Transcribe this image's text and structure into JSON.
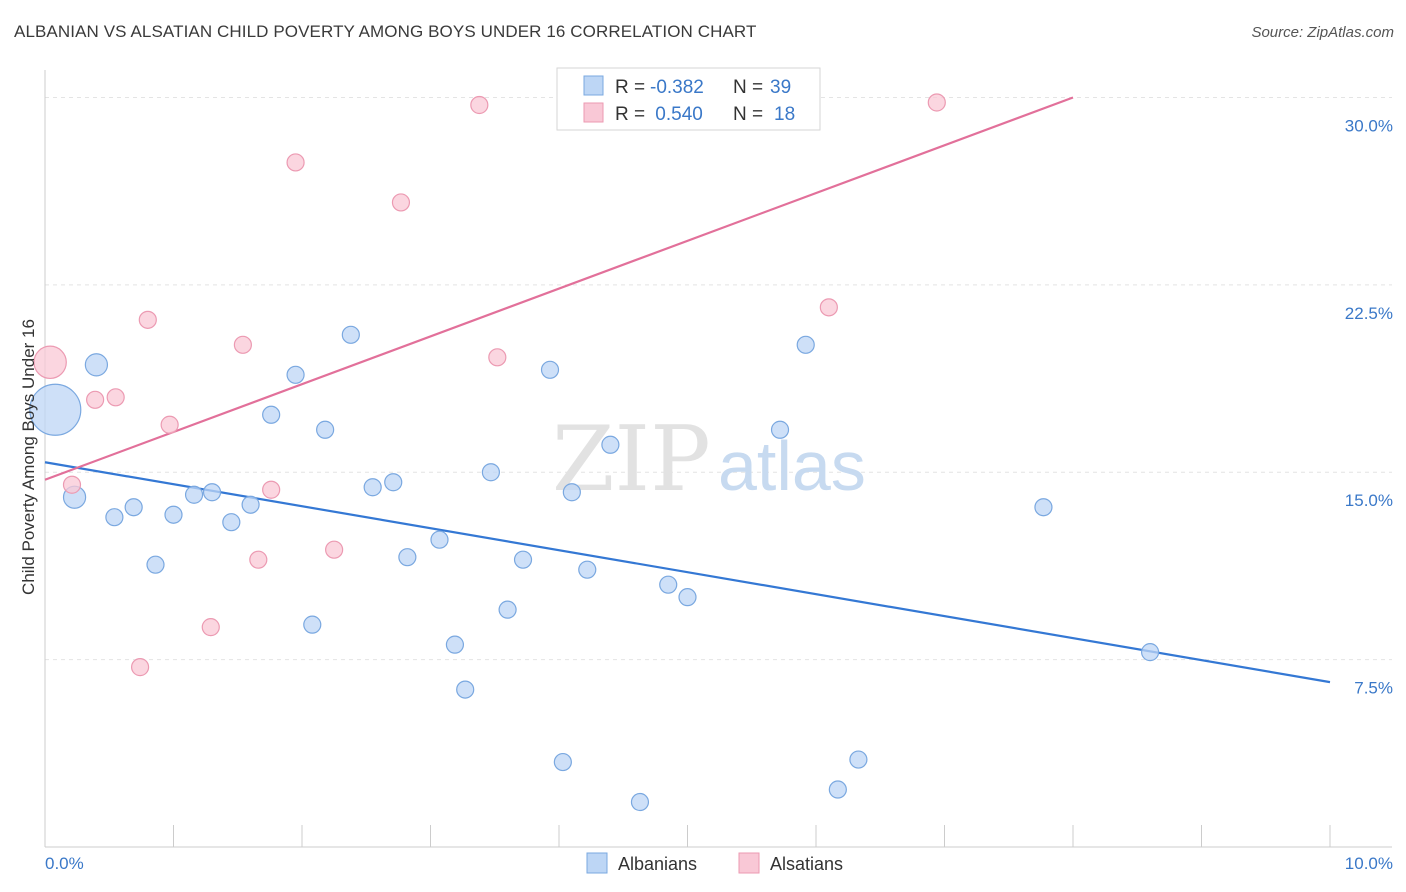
{
  "title": "ALBANIAN VS ALSATIAN CHILD POVERTY AMONG BOYS UNDER 16 CORRELATION CHART",
  "source": "Source: ZipAtlas.com",
  "watermark": {
    "zip": "ZIP",
    "atlas": "atlas"
  },
  "colors": {
    "albanians_fill": "#bdd6f5",
    "albanians_stroke": "#7aa8e0",
    "albanians_line": "#3478d4",
    "alsatians_fill": "#f9c8d6",
    "alsatians_stroke": "#ec9ab2",
    "alsatians_line": "#e2709a",
    "tick_label": "#3a78c8"
  },
  "legend": {
    "rows": [
      {
        "r_label": "R =",
        "r_value": "-0.382",
        "n_label": "N =",
        "n_value": "39"
      },
      {
        "r_label": "R =",
        "r_value": " 0.540",
        "n_label": "N =",
        "n_value": "18"
      }
    ]
  },
  "chart_data": {
    "type": "scatter",
    "title": "ALBANIAN VS ALSATIAN CHILD POVERTY AMONG BOYS UNDER 16 CORRELATION CHART",
    "xlabel": "",
    "ylabel": "Child Poverty Among Boys Under 16",
    "xlim": [
      0,
      10
    ],
    "ylim": [
      0,
      31.1
    ],
    "x_tick_labels": [
      {
        "value": 0,
        "label": "0.0%"
      },
      {
        "value": 10,
        "label": "10.0%"
      }
    ],
    "y_tick_labels": [
      {
        "value": 7.5,
        "label": "7.5%"
      },
      {
        "value": 15.0,
        "label": "15.0%"
      },
      {
        "value": 22.5,
        "label": "22.5%"
      },
      {
        "value": 30.0,
        "label": "30.0%"
      }
    ],
    "grid": true,
    "legend_position": "top-center",
    "series": [
      {
        "name": "Albanians",
        "r": -0.382,
        "n": 39,
        "trend": {
          "x": [
            0,
            10
          ],
          "y": [
            15.4,
            6.6
          ]
        },
        "points": [
          {
            "x": 0.08,
            "y": 17.5,
            "size": 3
          },
          {
            "x": 0.23,
            "y": 14.0,
            "size": 1.3
          },
          {
            "x": 0.4,
            "y": 19.3,
            "size": 1.3
          },
          {
            "x": 0.54,
            "y": 13.2,
            "size": 1
          },
          {
            "x": 0.69,
            "y": 13.6,
            "size": 1
          },
          {
            "x": 0.86,
            "y": 11.3,
            "size": 1
          },
          {
            "x": 1.0,
            "y": 13.3,
            "size": 1
          },
          {
            "x": 1.16,
            "y": 14.1,
            "size": 1
          },
          {
            "x": 1.3,
            "y": 14.2,
            "size": 1
          },
          {
            "x": 1.45,
            "y": 13.0,
            "size": 1
          },
          {
            "x": 1.6,
            "y": 13.7,
            "size": 1
          },
          {
            "x": 1.76,
            "y": 17.3,
            "size": 1
          },
          {
            "x": 1.95,
            "y": 18.9,
            "size": 1
          },
          {
            "x": 2.08,
            "y": 8.9,
            "size": 1
          },
          {
            "x": 2.18,
            "y": 16.7,
            "size": 1
          },
          {
            "x": 2.38,
            "y": 20.5,
            "size": 1
          },
          {
            "x": 2.55,
            "y": 14.4,
            "size": 1
          },
          {
            "x": 2.71,
            "y": 14.6,
            "size": 1
          },
          {
            "x": 2.82,
            "y": 11.6,
            "size": 1
          },
          {
            "x": 3.07,
            "y": 12.3,
            "size": 1
          },
          {
            "x": 3.19,
            "y": 8.1,
            "size": 1
          },
          {
            "x": 3.27,
            "y": 6.3,
            "size": 1
          },
          {
            "x": 3.47,
            "y": 15.0,
            "size": 1
          },
          {
            "x": 3.6,
            "y": 9.5,
            "size": 1
          },
          {
            "x": 3.72,
            "y": 11.5,
            "size": 1
          },
          {
            "x": 3.93,
            "y": 19.1,
            "size": 1
          },
          {
            "x": 4.03,
            "y": 3.4,
            "size": 1
          },
          {
            "x": 4.1,
            "y": 14.2,
            "size": 1
          },
          {
            "x": 4.22,
            "y": 11.1,
            "size": 1
          },
          {
            "x": 4.4,
            "y": 16.1,
            "size": 1
          },
          {
            "x": 4.63,
            "y": 1.8,
            "size": 1
          },
          {
            "x": 4.85,
            "y": 10.5,
            "size": 1
          },
          {
            "x": 5.0,
            "y": 10.0,
            "size": 1
          },
          {
            "x": 5.72,
            "y": 16.7,
            "size": 1
          },
          {
            "x": 5.92,
            "y": 20.1,
            "size": 1
          },
          {
            "x": 6.17,
            "y": 2.3,
            "size": 1
          },
          {
            "x": 6.33,
            "y": 3.5,
            "size": 1
          },
          {
            "x": 7.77,
            "y": 13.6,
            "size": 1
          },
          {
            "x": 8.6,
            "y": 7.8,
            "size": 1
          }
        ]
      },
      {
        "name": "Alsatians",
        "r": 0.54,
        "n": 18,
        "trend": {
          "x": [
            0,
            8.0
          ],
          "y": [
            14.7,
            30.0
          ]
        },
        "points": [
          {
            "x": 0.04,
            "y": 19.4,
            "size": 1.9
          },
          {
            "x": 0.21,
            "y": 14.5,
            "size": 1
          },
          {
            "x": 0.39,
            "y": 17.9,
            "size": 1
          },
          {
            "x": 0.55,
            "y": 18.0,
            "size": 1
          },
          {
            "x": 0.74,
            "y": 7.2,
            "size": 1
          },
          {
            "x": 0.8,
            "y": 21.1,
            "size": 1
          },
          {
            "x": 0.97,
            "y": 16.9,
            "size": 1
          },
          {
            "x": 1.29,
            "y": 8.8,
            "size": 1
          },
          {
            "x": 1.54,
            "y": 20.1,
            "size": 1
          },
          {
            "x": 1.66,
            "y": 11.5,
            "size": 1
          },
          {
            "x": 1.76,
            "y": 14.3,
            "size": 1
          },
          {
            "x": 1.95,
            "y": 27.4,
            "size": 1
          },
          {
            "x": 2.25,
            "y": 11.9,
            "size": 1
          },
          {
            "x": 2.77,
            "y": 25.8,
            "size": 1
          },
          {
            "x": 3.38,
            "y": 29.7,
            "size": 1
          },
          {
            "x": 3.52,
            "y": 19.6,
            "size": 1
          },
          {
            "x": 6.1,
            "y": 21.6,
            "size": 1
          },
          {
            "x": 6.94,
            "y": 29.8,
            "size": 1
          }
        ]
      }
    ]
  }
}
